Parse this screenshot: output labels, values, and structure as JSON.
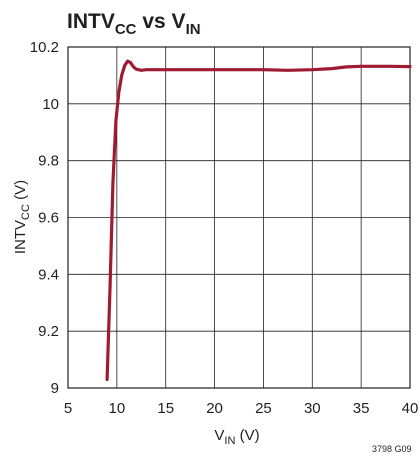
{
  "chart_data": {
    "type": "line",
    "title": {
      "main": "INTV",
      "sub1": "CC",
      "mid": " vs V",
      "sub2": "IN"
    },
    "xlabel": {
      "main": "V",
      "sub": "IN",
      "unit": " (V)"
    },
    "ylabel": {
      "main": "INTV",
      "sub": "CC",
      "unit": " (V)"
    },
    "xlim": [
      5,
      40
    ],
    "ylim": [
      9,
      10.2
    ],
    "xticks": [
      5,
      10,
      15,
      20,
      25,
      30,
      35,
      40
    ],
    "yticks": [
      9,
      9.2,
      9.4,
      9.6,
      9.8,
      10,
      10.2
    ],
    "ytick_labels": [
      "9",
      "9.2",
      "9.4",
      "9.6",
      "9.8",
      "10",
      "10.2"
    ],
    "grid": true,
    "series_color": "#9e1b32",
    "series": [
      {
        "x": [
          9.0,
          9.3,
          9.6,
          9.9,
          10.2,
          10.5,
          10.8,
          11.1,
          11.4,
          11.7,
          12.0,
          12.5,
          13.0,
          14.0,
          16,
          20,
          25,
          27.5,
          30,
          32,
          33.5,
          35,
          38,
          40
        ],
        "y": [
          9.03,
          9.35,
          9.72,
          9.94,
          10.04,
          10.1,
          10.135,
          10.15,
          10.145,
          10.13,
          10.122,
          10.118,
          10.12,
          10.12,
          10.12,
          10.12,
          10.12,
          10.118,
          10.12,
          10.124,
          10.13,
          10.132,
          10.132,
          10.131
        ]
      }
    ]
  },
  "footnote": "3798 G09"
}
